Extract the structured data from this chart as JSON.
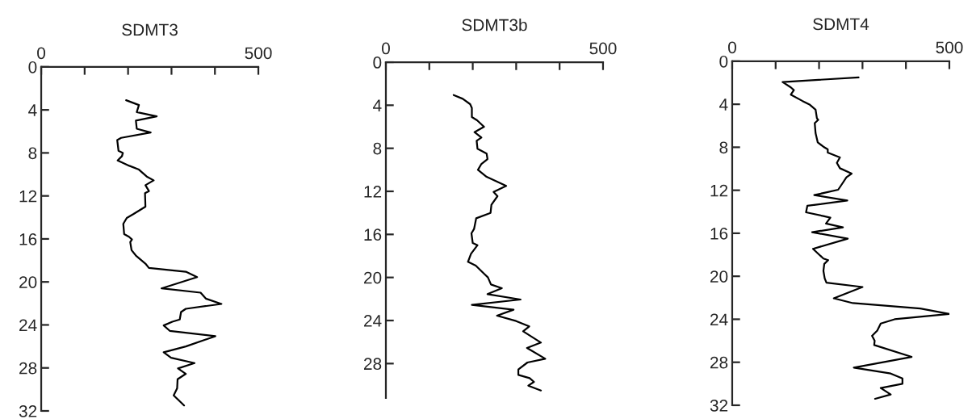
{
  "chart_data": [
    {
      "type": "line",
      "title": "SDMT3",
      "xlim": [
        0,
        500
      ],
      "xticks": [
        0,
        {
          "value": 100,
          "label": null
        },
        {
          "value": 200,
          "label": null
        },
        {
          "value": 300,
          "label": null
        },
        {
          "value": 400,
          "label": null
        },
        500
      ],
      "ylim": [
        32,
        0
      ],
      "yticks": [
        0,
        4,
        8,
        12,
        16,
        20,
        24,
        28,
        32
      ],
      "grid": false,
      "legend": false,
      "marker": "none",
      "line_style": "solid",
      "series": [
        {
          "color": "#000000",
          "x": [
            195.5,
            225,
            220,
            266,
            218,
            220,
            252,
            184,
            175,
            178,
            188,
            186,
            176,
            203,
            225,
            243,
            259,
            240,
            248,
            239,
            240,
            212,
            197,
            189,
            191,
            202,
            209,
            205,
            208,
            218,
            240,
            248,
            333,
            359,
            277,
            367,
            379,
            415,
            333,
            322,
            319,
            302,
            282,
            296,
            401,
            333,
            282,
            299,
            353,
            315,
            333,
            314,
            313,
            305,
            329
          ],
          "values": [
            3.1,
            3.55,
            4.2,
            4.6,
            5.0,
            5.75,
            6.1,
            6.6,
            6.8,
            7.8,
            8.0,
            8.3,
            8.7,
            9.2,
            9.55,
            10.2,
            10.55,
            11.0,
            11.55,
            11.75,
            13.0,
            13.7,
            14.05,
            14.6,
            15.55,
            15.8,
            16.05,
            16.3,
            17.05,
            17.55,
            18.3,
            18.7,
            19.05,
            19.55,
            20.6,
            21.0,
            21.55,
            22.05,
            22.5,
            22.8,
            23.5,
            23.7,
            24.05,
            24.55,
            25.05,
            26.0,
            26.55,
            27.05,
            27.55,
            28.05,
            28.55,
            29.05,
            29.9,
            30.55,
            31.5
          ]
        }
      ]
    },
    {
      "type": "line",
      "title": "SDMT3b",
      "xlim": [
        0,
        500
      ],
      "xticks": [
        0,
        {
          "value": 100,
          "label": null
        },
        {
          "value": 200,
          "label": null
        },
        {
          "value": 300,
          "label": null
        },
        {
          "value": 400,
          "label": null
        },
        500
      ],
      "ylim": [
        31.2,
        0
      ],
      "yticks": [
        0,
        4,
        8,
        12,
        16,
        20,
        24,
        28
      ],
      "grid": false,
      "legend": false,
      "marker": "none",
      "line_style": "solid",
      "series": [
        {
          "color": "#000000",
          "x": [
            156,
            177,
            194,
            198,
            198,
            210,
            226,
            204,
            220,
            209,
            211,
            232,
            234,
            220,
            212,
            232,
            251,
            277,
            248,
            257,
            243,
            241,
            208,
            203,
            197,
            200,
            211,
            196,
            189,
            207,
            226,
            235,
            242,
            267,
            234,
            310,
            198,
            294,
            256,
            300,
            330,
            316,
            357,
            325,
            367,
            326,
            305,
            305,
            331,
            341,
            328,
            357
          ],
          "values": [
            3.05,
            3.4,
            3.9,
            4.25,
            5.1,
            5.4,
            6.0,
            6.5,
            7.0,
            7.3,
            8.05,
            8.5,
            9.0,
            9.45,
            10.0,
            10.65,
            11.0,
            11.5,
            12.05,
            12.45,
            13.25,
            14.0,
            14.5,
            15.5,
            15.9,
            16.8,
            17.0,
            17.8,
            18.55,
            18.9,
            19.65,
            20.0,
            20.65,
            21.0,
            21.55,
            22.05,
            22.55,
            23.0,
            23.55,
            24.05,
            24.55,
            25.0,
            26.05,
            26.55,
            27.55,
            27.9,
            28.55,
            29.05,
            29.35,
            29.7,
            30.05,
            30.5
          ]
        }
      ]
    },
    {
      "type": "line",
      "title": "SDMT4",
      "xlim": [
        0,
        500
      ],
      "xticks": [
        0,
        {
          "value": 100,
          "label": null
        },
        {
          "value": 200,
          "label": null
        },
        {
          "value": 300,
          "label": null
        },
        {
          "value": 400,
          "label": null
        },
        500
      ],
      "ylim": [
        32,
        0
      ],
      "yticks": [
        0,
        4,
        8,
        12,
        16,
        20,
        24,
        28,
        32
      ],
      "grid": false,
      "legend": false,
      "marker": "none",
      "line_style": "solid",
      "series": [
        {
          "color": "#000000",
          "x": [
            291,
            116,
            135,
            142,
            135,
            162,
            179,
            192,
            195,
            198,
            190,
            192,
            197,
            210,
            220,
            220,
            248,
            241,
            248,
            275,
            263,
            254,
            244,
            189,
            265,
            173,
            170,
            210,
            226,
            216,
            255,
            184,
            266,
            186,
            210,
            221,
            212,
            210,
            213,
            217,
            300,
            234,
            278,
            433,
            500,
            374,
            342,
            334,
            322,
            328,
            327,
            413,
            280,
            365,
            392,
            392,
            342,
            365,
            329
          ],
          "values": [
            1.5,
            1.93,
            2.43,
            2.68,
            3.1,
            3.7,
            4.05,
            4.5,
            5.3,
            5.45,
            5.75,
            6.7,
            7.55,
            7.95,
            8.2,
            8.5,
            8.95,
            9.45,
            9.95,
            10.45,
            10.8,
            11.35,
            11.95,
            12.45,
            12.95,
            13.45,
            14.05,
            14.4,
            14.55,
            15.1,
            15.45,
            15.9,
            16.5,
            17.45,
            18.35,
            18.5,
            18.85,
            19.5,
            20.2,
            20.6,
            21.0,
            22.05,
            22.5,
            23.0,
            23.5,
            24.0,
            24.4,
            25.05,
            25.55,
            26.0,
            26.4,
            27.5,
            28.5,
            29.05,
            29.5,
            30.0,
            30.4,
            31.0,
            31.4
          ]
        }
      ]
    }
  ]
}
